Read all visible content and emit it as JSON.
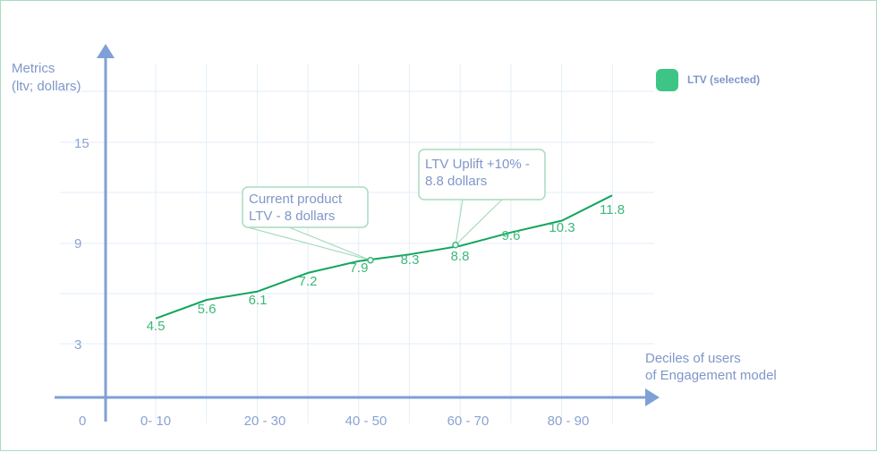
{
  "chart_data": {
    "type": "line",
    "ylabel": [
      "Metrics",
      "(ltv; dollars)"
    ],
    "xlabel": [
      "Deciles of users",
      "of Engagement model"
    ],
    "y_ticks": [
      "3",
      "9",
      "15"
    ],
    "origin_label": "0",
    "x_tick_labels": [
      "0- 10",
      "20 - 30",
      "40 - 50",
      "60 - 70",
      "80 - 90"
    ],
    "series": [
      {
        "name": "LTV (selected)",
        "color": "#3dc586",
        "values": [
          4.5,
          5.6,
          6.1,
          7.2,
          7.9,
          8.3,
          8.8,
          9.6,
          10.3,
          11.8
        ]
      }
    ],
    "line_color": "#12a55c",
    "annotations": [
      {
        "lines": [
          "Current product",
          "LTV - 8 dollars"
        ],
        "point_index": 4
      },
      {
        "lines": [
          "LTV Uplift +10% -",
          "8.8 dollars"
        ],
        "point_index": 6
      }
    ],
    "legend_position": "top-right",
    "grid": true
  }
}
